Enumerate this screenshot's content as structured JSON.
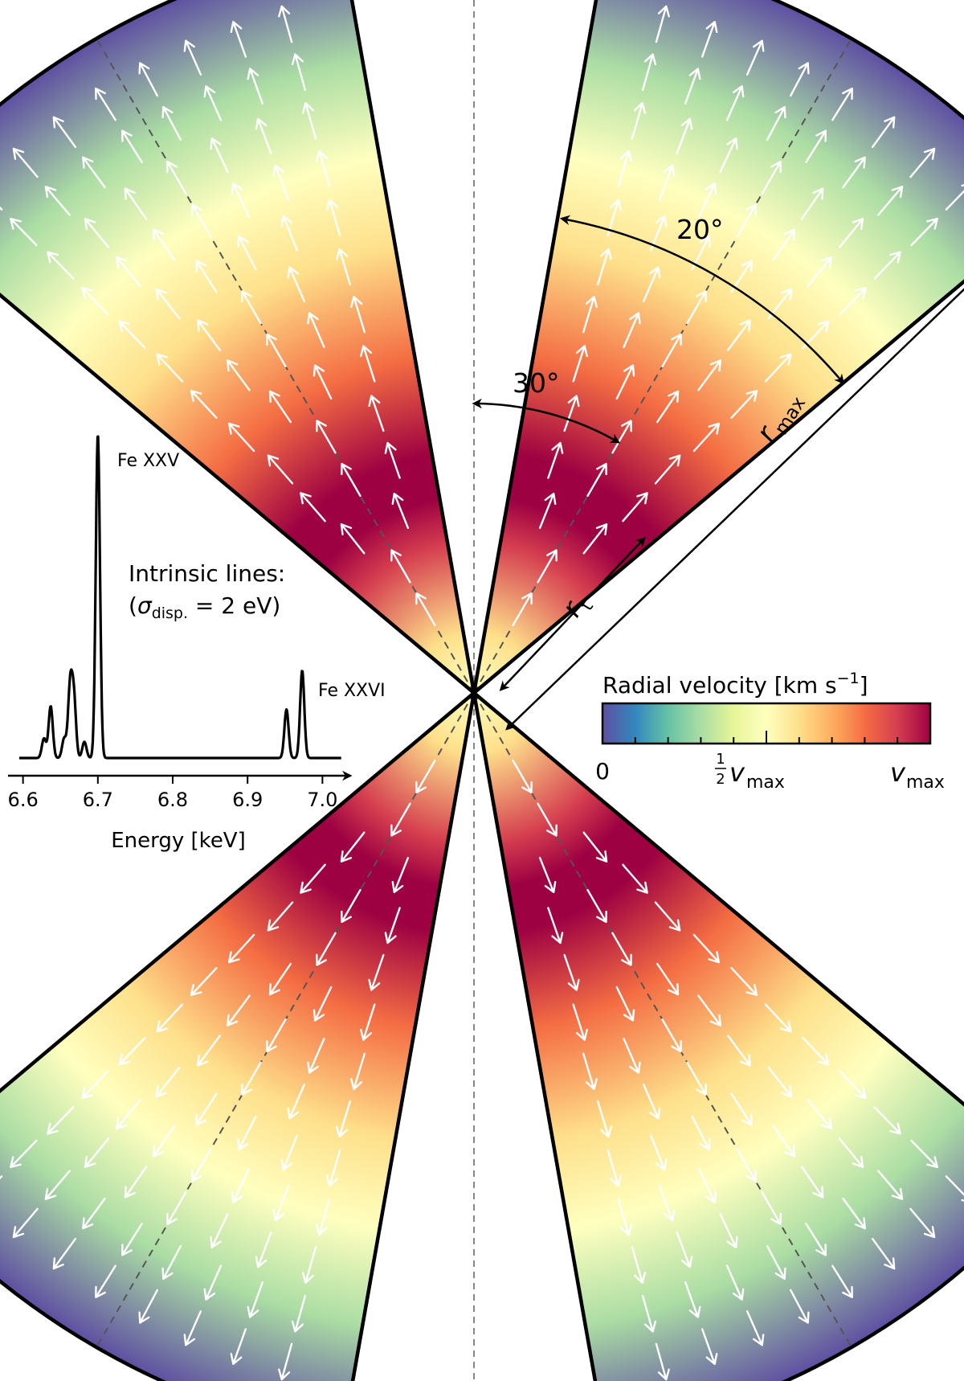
{
  "annotations": {
    "angle_opening": "20°",
    "angle_inclination": "30°",
    "r_max": "r",
    "r_max_sub": "max",
    "r_t": "r",
    "r_t_sub": "t"
  },
  "inset": {
    "title_line1": "Intrinsic lines:",
    "title_line2_sigma": "σ",
    "title_line2_sub": "disp.",
    "title_line2_rest": " = 2 eV)",
    "title_line2_open": "(",
    "line_label_fexxv": "Fe XXV",
    "line_label_fexxvi": "Fe XXVI",
    "xlabel": "Energy [keV]",
    "x_ticks": [
      "6.6",
      "6.7",
      "6.8",
      "6.9",
      "7.0"
    ]
  },
  "colorbar": {
    "title": "Radial velocity [km s",
    "title_sup": "−1",
    "title_close": "]",
    "tick_min": "0",
    "tick_half_frac_num": "1",
    "tick_half_frac_den": "2",
    "tick_half_v": "v",
    "tick_half_sub": "max",
    "tick_max_v": "v",
    "tick_max_sub": "max",
    "colors": [
      "#5e4fa2",
      "#3288bd",
      "#66c2a5",
      "#abdda4",
      "#e6f598",
      "#ffffbf",
      "#fee08b",
      "#fdae61",
      "#f46d43",
      "#d53e4f",
      "#9e0142"
    ]
  },
  "chart_data": {
    "type": "line",
    "xlabel": "Energy [keV]",
    "x_range": [
      6.58,
      7.02
    ],
    "lines": [
      {
        "name": "Fe XXV",
        "energy_keV": 6.7,
        "rel_height": 1.0
      },
      {
        "energy_keV": 6.668,
        "rel_height": 0.18
      },
      {
        "energy_keV": 6.663,
        "rel_height": 0.22
      },
      {
        "energy_keV": 6.637,
        "rel_height": 0.16
      },
      {
        "energy_keV": 6.628,
        "rel_height": 0.06
      },
      {
        "energy_keV": 6.655,
        "rel_height": 0.06
      },
      {
        "energy_keV": 6.682,
        "rel_height": 0.05
      },
      {
        "name": "Fe XXVI",
        "energy_keV": 6.973,
        "rel_height": 0.27
      },
      {
        "energy_keV": 6.952,
        "rel_height": 0.15
      }
    ]
  }
}
